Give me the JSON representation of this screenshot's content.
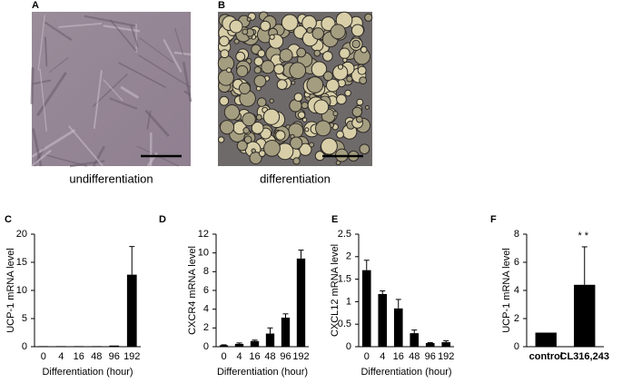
{
  "figure_panels": [
    {
      "label": "A",
      "caption": "undifferentiation"
    },
    {
      "label": "B",
      "caption": "differentiation"
    }
  ],
  "chart_data": [
    {
      "type": "bar",
      "panel": "C",
      "ylabel": "UCP-1 mRNA level",
      "xlabel": "Differentiation (hour)",
      "categories": [
        "0",
        "4",
        "16",
        "48",
        "96",
        "192"
      ],
      "values": [
        0.1,
        0.1,
        0.1,
        0.1,
        0.2,
        12.8
      ],
      "errors": [
        0,
        0,
        0,
        0,
        0,
        5
      ],
      "color": "#000000",
      "ylim": [
        0,
        20
      ],
      "yticks": [
        0,
        5,
        10,
        15,
        20
      ]
    },
    {
      "type": "bar",
      "panel": "D",
      "ylabel": "CXCR4 mRNA level",
      "xlabel": "Differentiation (hour)",
      "categories": [
        "0",
        "4",
        "16",
        "48",
        "96",
        "192"
      ],
      "values": [
        0.15,
        0.3,
        0.6,
        1.4,
        3.1,
        9.4
      ],
      "errors": [
        0.05,
        0.1,
        0.1,
        0.6,
        0.4,
        0.9
      ],
      "color": "#000000",
      "ylim": [
        0,
        12
      ],
      "yticks": [
        0,
        2,
        4,
        6,
        8,
        10,
        12
      ]
    },
    {
      "type": "bar",
      "panel": "E",
      "ylabel": "CXCL12 mRNA level",
      "xlabel": "Differentiation (hour)",
      "categories": [
        "0",
        "4",
        "16",
        "48",
        "96",
        "192"
      ],
      "values": [
        1.7,
        1.17,
        0.85,
        0.3,
        0.08,
        0.1
      ],
      "errors": [
        0.22,
        0.07,
        0.2,
        0.07,
        0.01,
        0.03
      ],
      "color": "#000000",
      "ylim": [
        0,
        2.5
      ],
      "yticks": [
        0,
        0.5,
        1,
        1.5,
        2,
        2.5
      ]
    },
    {
      "type": "bar",
      "panel": "F",
      "ylabel": "UCP-1 mRNA level",
      "categories": [
        "control",
        "CL316,243"
      ],
      "values": [
        1,
        4.4
      ],
      "errors": [
        0,
        2.7
      ],
      "annotations": [
        null,
        "**"
      ],
      "color": "#000000",
      "ylim": [
        0,
        8
      ],
      "yticks": [
        0,
        2,
        4,
        6,
        8
      ]
    }
  ]
}
